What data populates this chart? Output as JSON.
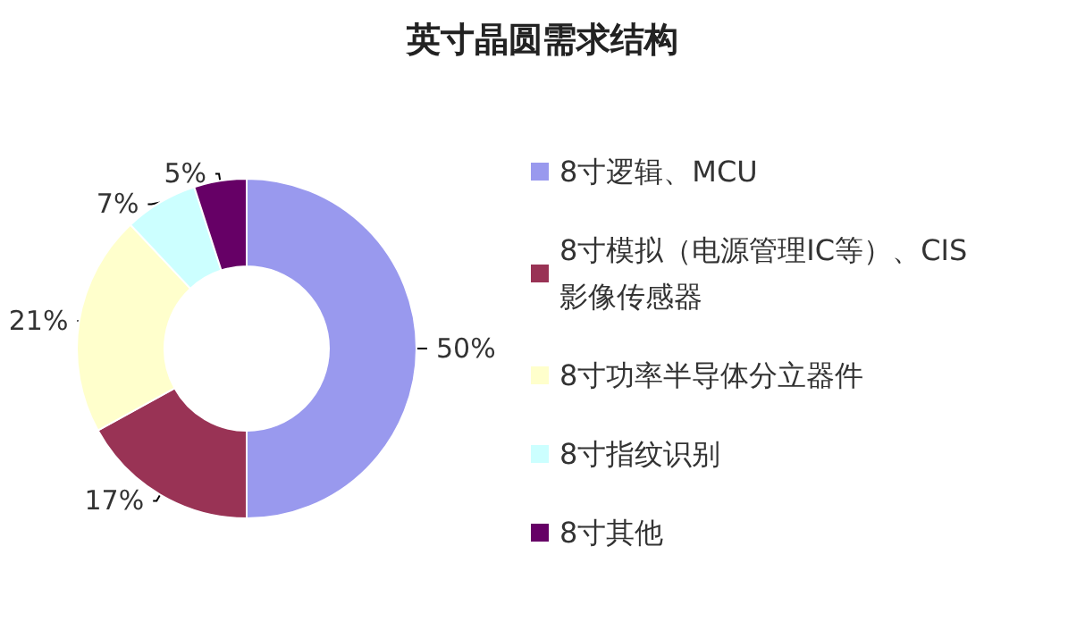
{
  "chart_data": {
    "type": "donut",
    "title": "英寸晶圆需求结构",
    "categories": [
      "8寸逻辑、MCU",
      "8寸模拟（电源管理IC等）、CIS影像传感器",
      "8寸功率半导体分立器件",
      "8寸指纹识别",
      "8寸其他"
    ],
    "values": [
      50,
      17,
      21,
      7,
      5
    ],
    "colors": [
      "#9999ee",
      "#993355",
      "#ffffcc",
      "#ccffff",
      "#660066"
    ],
    "value_labels": [
      "50%",
      "17%",
      "21%",
      "7%",
      "5%"
    ],
    "legend": "right"
  }
}
